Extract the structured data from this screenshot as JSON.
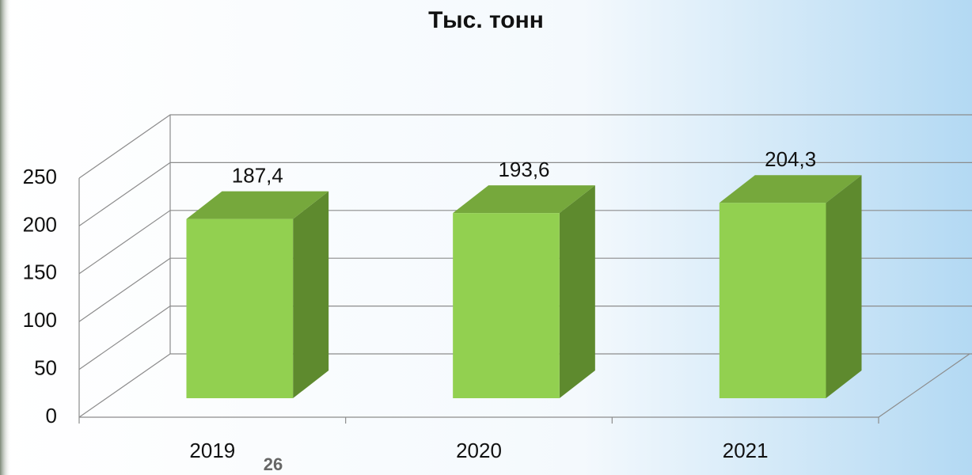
{
  "chart_data": {
    "type": "bar3d",
    "title": "Тыс. тонн",
    "categories": [
      "2019",
      "2020",
      "2021"
    ],
    "values": [
      187.4,
      193.6,
      204.3
    ],
    "value_labels": [
      "187,4",
      "193,6",
      "204,3"
    ],
    "color": "#92d050",
    "ylim": [
      0,
      250
    ],
    "yticks": [
      0,
      50,
      100,
      150,
      200,
      250
    ],
    "grid": true
  },
  "page_number": "26"
}
